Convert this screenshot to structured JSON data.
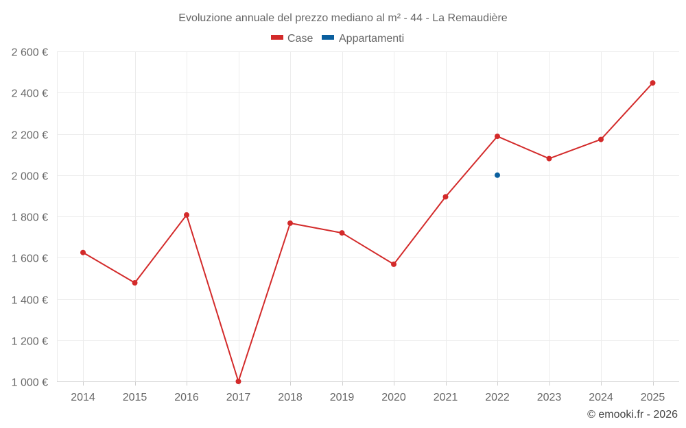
{
  "chart_data": {
    "type": "line",
    "title": "Evoluzione annuale del prezzo mediano al m² - 44 - La Remaudière",
    "categories": [
      "2014",
      "2015",
      "2016",
      "2017",
      "2018",
      "2019",
      "2020",
      "2021",
      "2022",
      "2023",
      "2024",
      "2025"
    ],
    "series": [
      {
        "name": "Case",
        "color": "#d32a2a",
        "values": [
          1625,
          1478,
          1807,
          1000,
          1767,
          1720,
          1568,
          1895,
          2188,
          2080,
          2173,
          2447
        ]
      },
      {
        "name": "Appartamenti",
        "color": "#0a5f9e",
        "values": [
          null,
          null,
          null,
          null,
          null,
          null,
          null,
          null,
          2000,
          null,
          null,
          null
        ]
      }
    ],
    "ylim": [
      1000,
      2600
    ],
    "yticks": [
      1000,
      1200,
      1400,
      1600,
      1800,
      2000,
      2200,
      2400,
      2600
    ],
    "ytick_labels": [
      "1 000 €",
      "1 200 €",
      "1 400 €",
      "1 600 €",
      "1 800 €",
      "2 000 €",
      "2 200 €",
      "2 400 €",
      "2 600 €"
    ],
    "xlabel": "",
    "ylabel": "",
    "grid": true,
    "legend_position": "top-center"
  },
  "credit": "© emooki.fr - 2026"
}
